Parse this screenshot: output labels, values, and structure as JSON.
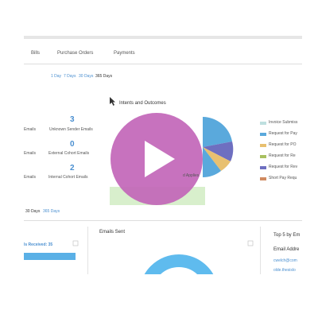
{
  "tabs": [
    "Bills",
    "Purchase Orders",
    "Payments"
  ],
  "range_top": [
    "1 Day",
    "7 Days",
    "30 Days",
    "365 Days"
  ],
  "intents_title": "Intents and Outcomes",
  "stats": [
    {
      "left_label": "Emails",
      "value": "3",
      "label": "Unknown Sender Emails"
    },
    {
      "left_label": "Emails",
      "value": "0",
      "label": "External Cohort Emails"
    },
    {
      "left_label": "Emails",
      "value": "2",
      "label": "Internal Cohort Emails"
    }
  ],
  "pie_caption": "d Applies",
  "legend": [
    "Invoice Submiss",
    "Request for Pay",
    "Request for PO",
    "Request for Re",
    "Request for Rev",
    "Short Pay Requ"
  ],
  "range_bottom": [
    "30 Days",
    "365 Days"
  ],
  "received_label": "ls Received: 35",
  "emails_sent_title": "Emails Sent",
  "top5": {
    "title": "Top 5 by Em",
    "column": "Email Addre",
    "rows": [
      "cwelch@com",
      "olde.thesislo"
    ]
  }
}
